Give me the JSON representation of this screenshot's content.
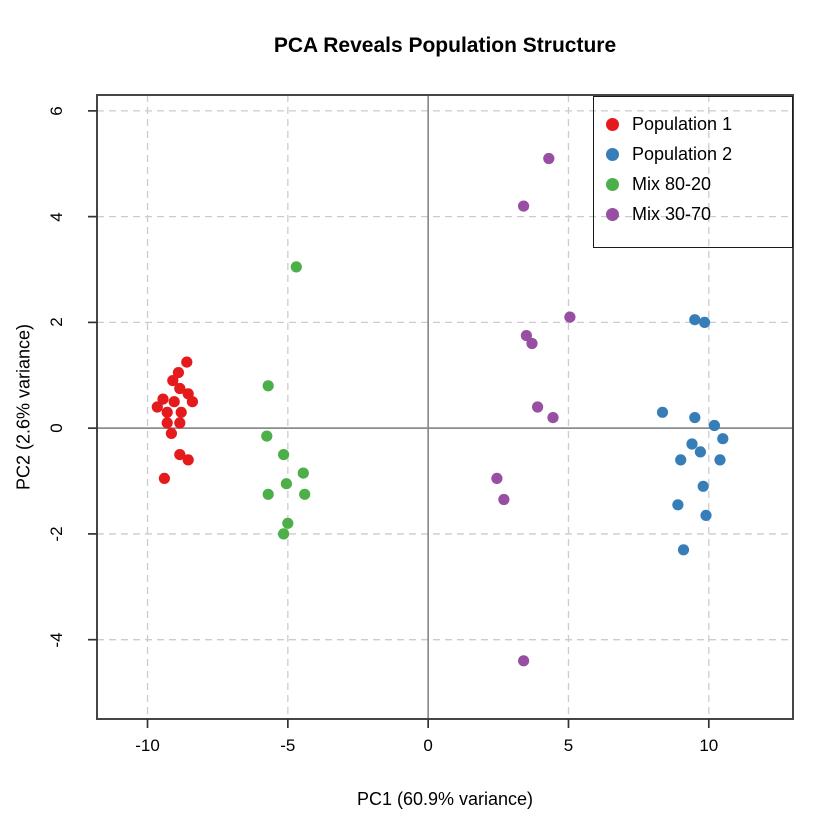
{
  "title": "PCA Reveals Population Structure",
  "axes": {
    "x": {
      "label": "PC1 (60.9% variance)",
      "ticks": [
        -10,
        -5,
        0,
        5,
        10
      ]
    },
    "y": {
      "label": "PC2 (2.6% variance)",
      "ticks": [
        -4,
        -2,
        0,
        2,
        4,
        6
      ]
    }
  },
  "colors": {
    "grid": "#cccccc",
    "zero_line": "#8c8c8c",
    "plot_border": "#454545",
    "tick": "#333333",
    "legend_border": "#1a1a1a"
  },
  "chart_data": {
    "type": "scatter",
    "title": "PCA Reveals Population Structure",
    "xlabel": "PC1 (60.9% variance)",
    "ylabel": "PC2 (2.6% variance)",
    "xlim": [
      -11.8,
      13.0
    ],
    "ylim": [
      -5.5,
      6.3
    ],
    "x_ticks": [
      -10,
      -5,
      0,
      5,
      10
    ],
    "y_ticks": [
      -4,
      -2,
      0,
      2,
      4,
      6
    ],
    "grid": "dashed",
    "reference_lines": {
      "v": 0,
      "h": 0
    },
    "legend_position": "top-right",
    "point_radius": 5.6,
    "series": [
      {
        "name": "Population 1",
        "color": "#E41A1C",
        "points": [
          [
            -8.6,
            1.25
          ],
          [
            -8.9,
            1.05
          ],
          [
            -9.1,
            0.9
          ],
          [
            -8.85,
            0.75
          ],
          [
            -8.55,
            0.65
          ],
          [
            -9.45,
            0.55
          ],
          [
            -9.05,
            0.5
          ],
          [
            -8.4,
            0.5
          ],
          [
            -9.65,
            0.4
          ],
          [
            -9.3,
            0.3
          ],
          [
            -8.8,
            0.3
          ],
          [
            -9.3,
            0.1
          ],
          [
            -8.85,
            0.1
          ],
          [
            -9.15,
            -0.1
          ],
          [
            -8.85,
            -0.5
          ],
          [
            -8.55,
            -0.6
          ],
          [
            -9.4,
            -0.95
          ]
        ]
      },
      {
        "name": "Population 2",
        "color": "#377EB8",
        "points": [
          [
            9.5,
            2.05
          ],
          [
            9.85,
            2.0
          ],
          [
            8.35,
            0.3
          ],
          [
            9.5,
            0.2
          ],
          [
            10.2,
            0.05
          ],
          [
            10.5,
            -0.2
          ],
          [
            9.4,
            -0.3
          ],
          [
            9.7,
            -0.45
          ],
          [
            9.0,
            -0.6
          ],
          [
            10.4,
            -0.6
          ],
          [
            9.8,
            -1.1
          ],
          [
            8.9,
            -1.45
          ],
          [
            9.9,
            -1.65
          ],
          [
            9.1,
            -2.3
          ]
        ]
      },
      {
        "name": "Mix 80-20",
        "color": "#4DAF4A",
        "points": [
          [
            -4.7,
            3.05
          ],
          [
            -5.7,
            0.8
          ],
          [
            -5.75,
            -0.15
          ],
          [
            -5.15,
            -0.5
          ],
          [
            -4.45,
            -0.85
          ],
          [
            -5.05,
            -1.05
          ],
          [
            -5.7,
            -1.25
          ],
          [
            -4.4,
            -1.25
          ],
          [
            -5.0,
            -1.8
          ],
          [
            -5.15,
            -2.0
          ]
        ]
      },
      {
        "name": "Mix 30-70",
        "color": "#984EA3",
        "points": [
          [
            4.3,
            5.1
          ],
          [
            3.4,
            4.2
          ],
          [
            5.05,
            2.1
          ],
          [
            3.5,
            1.75
          ],
          [
            3.7,
            1.6
          ],
          [
            3.9,
            0.4
          ],
          [
            4.45,
            0.2
          ],
          [
            2.45,
            -0.95
          ],
          [
            2.7,
            -1.35
          ],
          [
            3.4,
            -4.4
          ]
        ]
      }
    ]
  }
}
